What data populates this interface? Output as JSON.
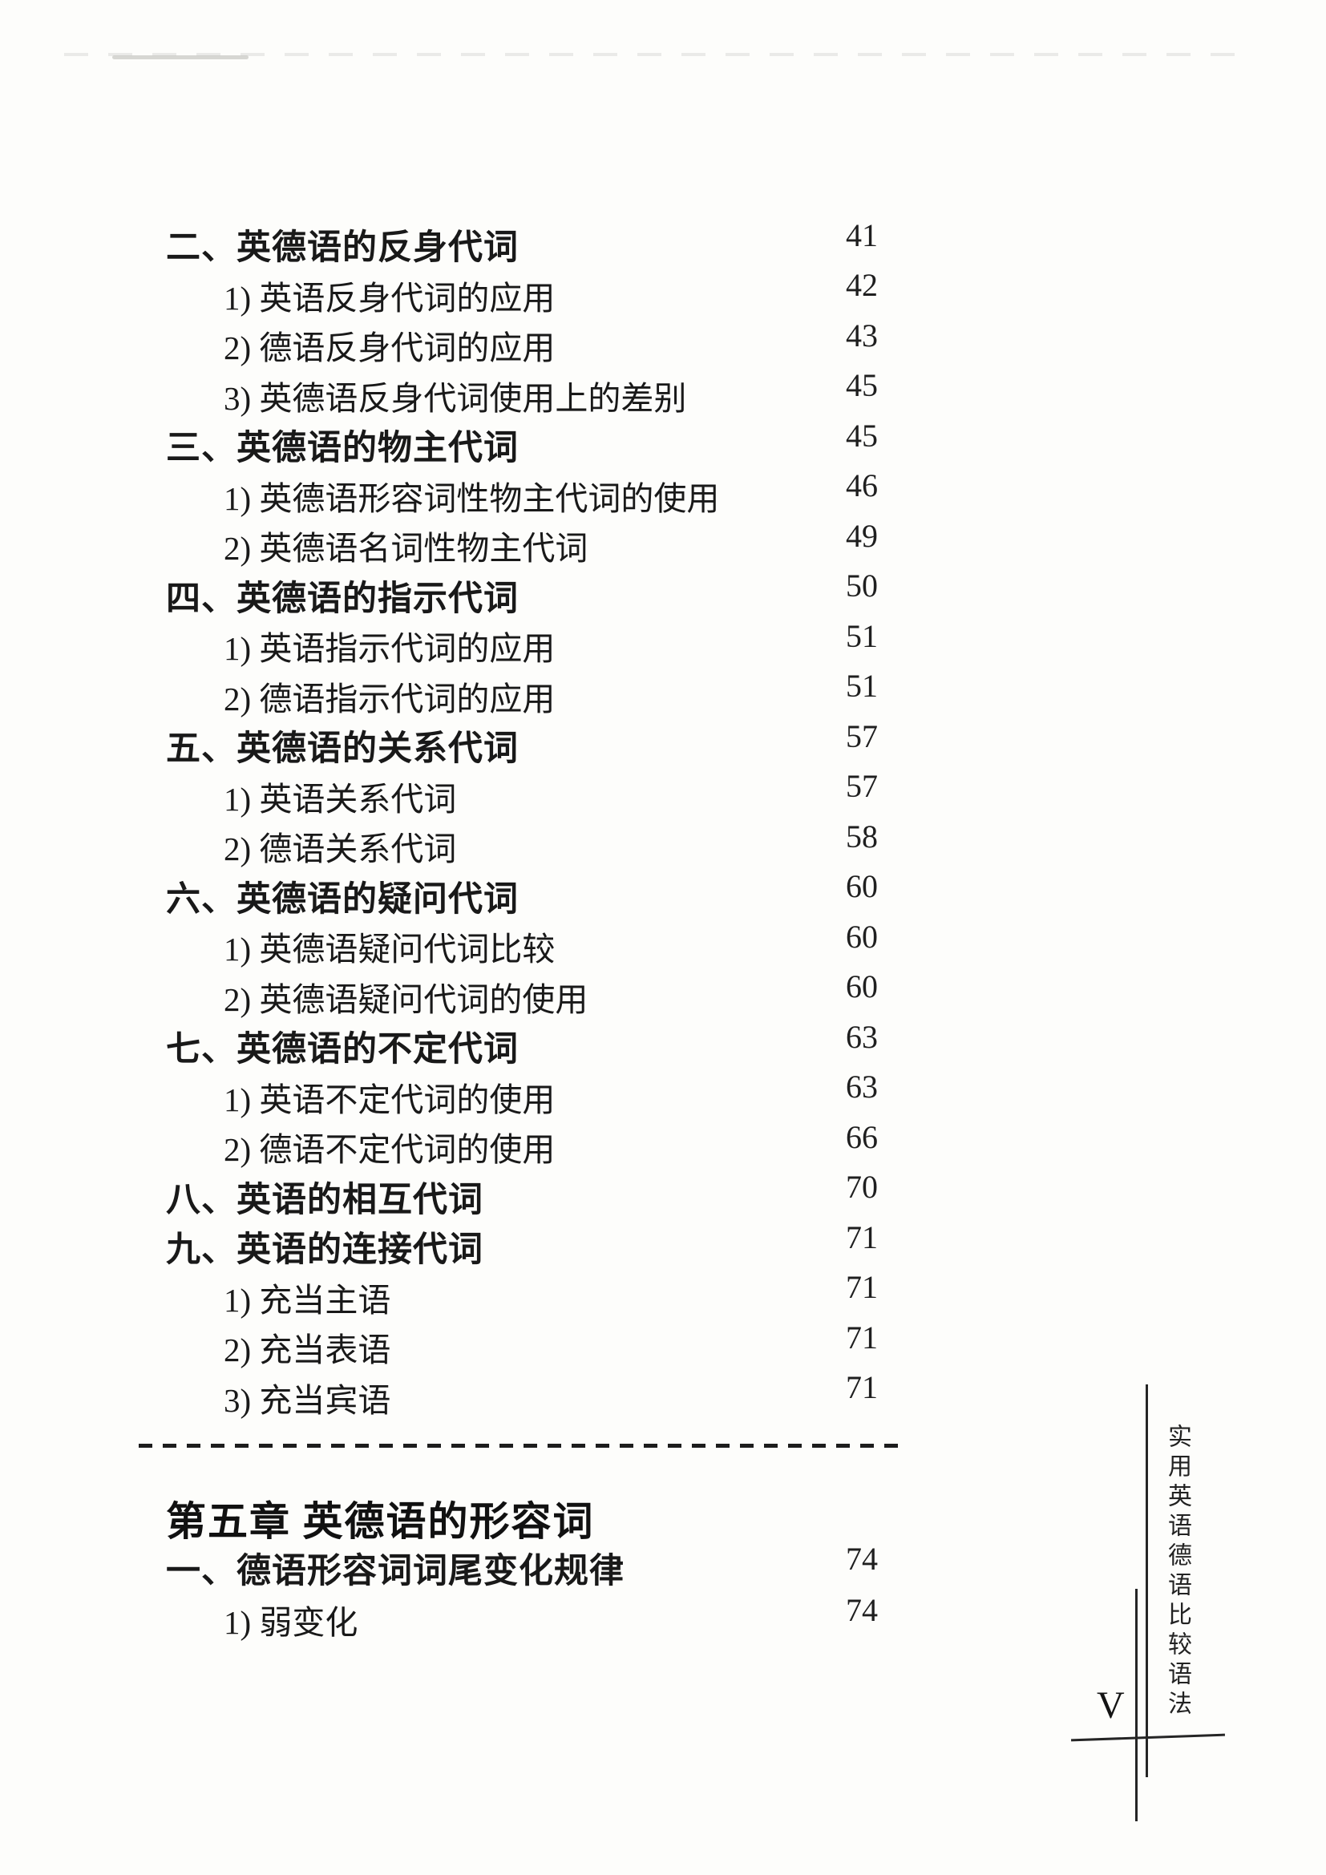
{
  "page": {
    "side_title_vertical": "实用英语德语比较语法",
    "page_number": "V"
  },
  "toc": {
    "entries": [
      {
        "level": 1,
        "label": "二、英德语的反身代词",
        "page": "41"
      },
      {
        "level": 2,
        "label": "1) 英语反身代词的应用",
        "page": "42"
      },
      {
        "level": 2,
        "label": "2) 德语反身代词的应用",
        "page": "43"
      },
      {
        "level": 2,
        "label": "3) 英德语反身代词使用上的差别",
        "page": "45"
      },
      {
        "level": 1,
        "label": "三、英德语的物主代词",
        "page": "45"
      },
      {
        "level": 2,
        "label": "1) 英德语形容词性物主代词的使用",
        "page": "46"
      },
      {
        "level": 2,
        "label": "2) 英德语名词性物主代词",
        "page": "49"
      },
      {
        "level": 1,
        "label": "四、英德语的指示代词",
        "page": "50"
      },
      {
        "level": 2,
        "label": "1) 英语指示代词的应用",
        "page": "51"
      },
      {
        "level": 2,
        "label": "2) 德语指示代词的应用",
        "page": "51"
      },
      {
        "level": 1,
        "label": "五、英德语的关系代词",
        "page": "57"
      },
      {
        "level": 2,
        "label": "1) 英语关系代词",
        "page": "57"
      },
      {
        "level": 2,
        "label": "2) 德语关系代词",
        "page": "58"
      },
      {
        "level": 1,
        "label": "六、英德语的疑问代词",
        "page": "60"
      },
      {
        "level": 2,
        "label": "1) 英德语疑问代词比较",
        "page": "60"
      },
      {
        "level": 2,
        "label": "2) 英德语疑问代词的使用",
        "page": "60"
      },
      {
        "level": 1,
        "label": "七、英德语的不定代词",
        "page": "63"
      },
      {
        "level": 2,
        "label": "1) 英语不定代词的使用",
        "page": "63"
      },
      {
        "level": 2,
        "label": "2) 德语不定代词的使用",
        "page": "66"
      },
      {
        "level": 1,
        "label": "八、英语的相互代词",
        "page": "70"
      },
      {
        "level": 1,
        "label": "九、英语的连接代词",
        "page": "71"
      },
      {
        "level": 2,
        "label": "1) 充当主语",
        "page": "71"
      },
      {
        "level": 2,
        "label": "2) 充当表语",
        "page": "71"
      },
      {
        "level": 2,
        "label": "3) 充当宾语",
        "page": "71"
      }
    ],
    "chapter_heading": "第五章 英德语的形容词",
    "chapter_entries": [
      {
        "level": 1,
        "label": "一、德语形容词词尾变化规律",
        "page": "74"
      },
      {
        "level": 2,
        "label": "1) 弱变化",
        "page": "74"
      }
    ]
  }
}
